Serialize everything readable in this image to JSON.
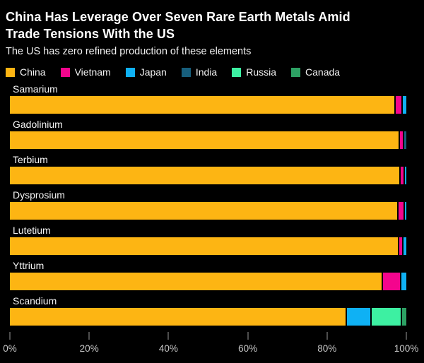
{
  "header": {
    "title_lines": [
      "China Has Leverage Over Seven Rare Earth Metals Amid",
      "Trade Tensions With the US"
    ],
    "subtitle": "The US has zero refined production of these elements"
  },
  "colors": {
    "background": "#000000",
    "title_text": "#ffffff",
    "body_text": "#f2f2f2",
    "axis_text": "#c6c6c6",
    "tick_mark": "#9a9a9a",
    "segment_divider": "#000000"
  },
  "chart_data": {
    "type": "bar",
    "orientation": "horizontal",
    "stacked": true,
    "unit": "%",
    "title": "China Has Leverage Over Seven Rare Earth Metals Amid Trade Tensions With the US",
    "subtitle": "The US has zero refined production of these elements",
    "legend_position": "top",
    "grid": false,
    "xlim": [
      0,
      100
    ],
    "x_ticks": [
      "0%",
      "20%",
      "40%",
      "60%",
      "80%",
      "100%"
    ],
    "categories": [
      "Samarium",
      "Gadolinium",
      "Terbium",
      "Dysprosium",
      "Lutetium",
      "Yttrium",
      "Scandium"
    ],
    "series": [
      {
        "name": "China",
        "color": "#fdb513",
        "values": [
          97.0,
          98.0,
          98.3,
          97.7,
          97.9,
          93.8,
          84.7
        ]
      },
      {
        "name": "Vietnam",
        "color": "#f4058d",
        "values": [
          1.8,
          1.2,
          0.9,
          1.6,
          1.0,
          4.6,
          0
        ]
      },
      {
        "name": "Japan",
        "color": "#0fb1f4",
        "values": [
          1.2,
          0,
          0.8,
          0.7,
          1.1,
          1.6,
          6.3
        ]
      },
      {
        "name": "India",
        "color": "#175e7c",
        "values": [
          0,
          0.8,
          0,
          0,
          0,
          0,
          0
        ]
      },
      {
        "name": "Russia",
        "color": "#3df0a2",
        "values": [
          0,
          0,
          0,
          0,
          0,
          0,
          7.6
        ]
      },
      {
        "name": "Canada",
        "color": "#2da164",
        "values": [
          0,
          0,
          0,
          0,
          0,
          0,
          1.4
        ]
      }
    ]
  }
}
